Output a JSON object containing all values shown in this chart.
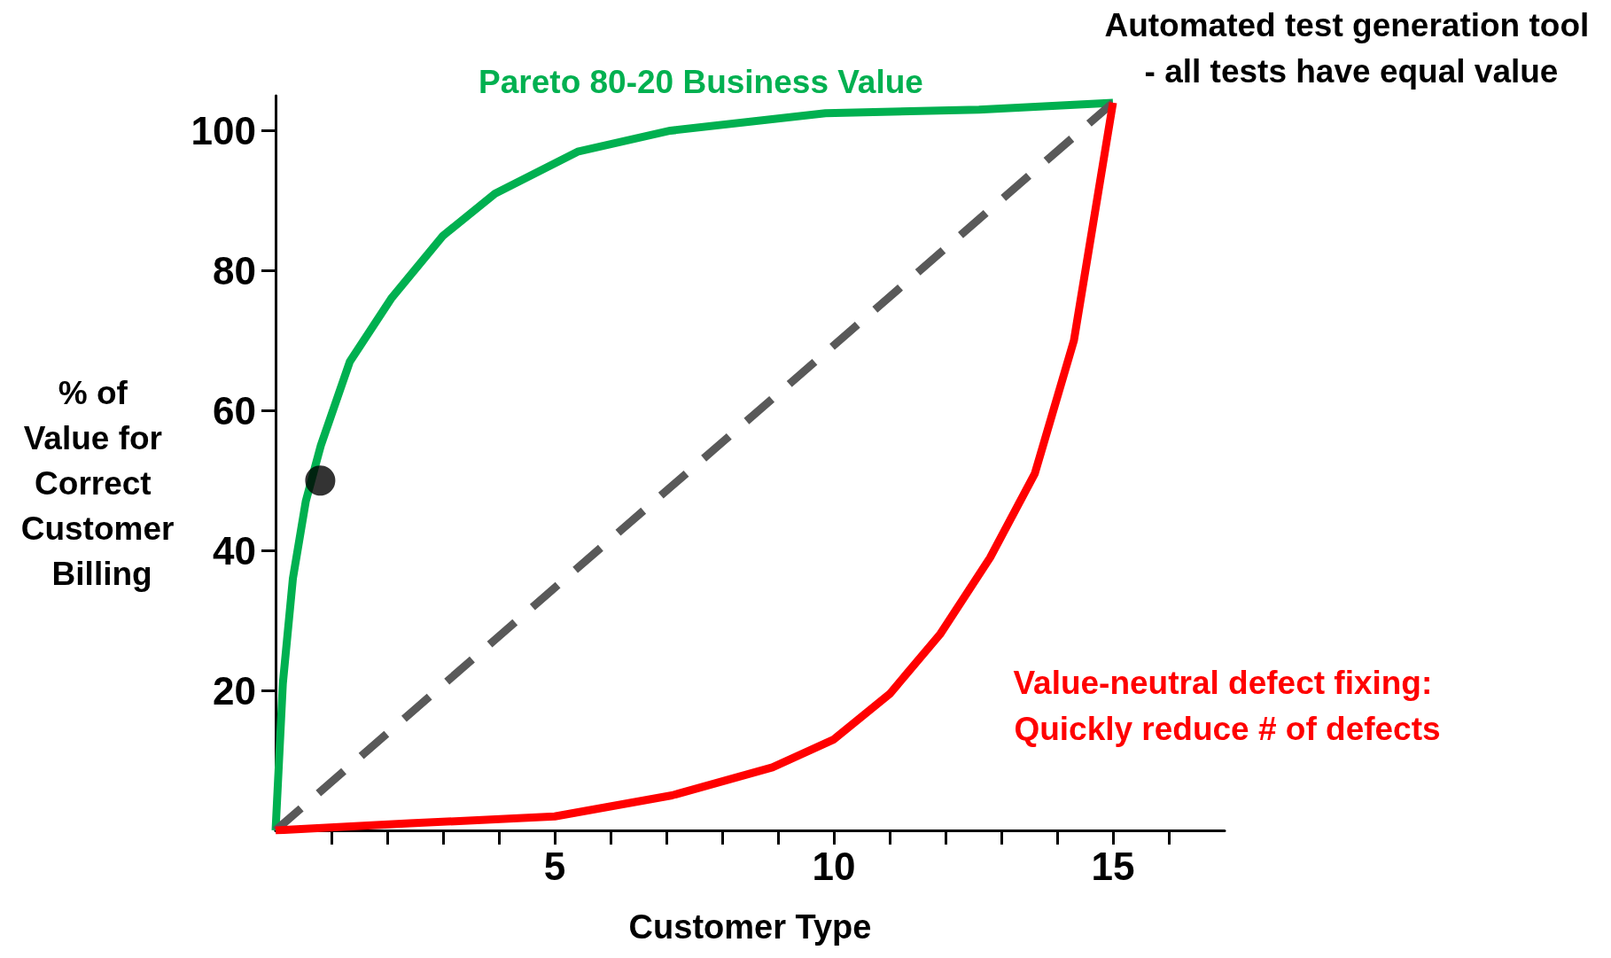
{
  "chart_data": {
    "type": "line",
    "xlabel": "Customer Type",
    "ylabel": "% of Value for Correct Customer Billing",
    "xlim": [
      0,
      17
    ],
    "ylim": [
      0,
      105
    ],
    "xticks": [
      {
        "value": 1,
        "label": null
      },
      {
        "value": 2,
        "label": null
      },
      {
        "value": 3,
        "label": null
      },
      {
        "value": 4,
        "label": null
      },
      5,
      {
        "value": 6,
        "label": null
      },
      {
        "value": 7,
        "label": null
      },
      {
        "value": 8,
        "label": null
      },
      {
        "value": 9,
        "label": null
      },
      10,
      {
        "value": 11,
        "label": null
      },
      {
        "value": 12,
        "label": null
      },
      {
        "value": 13,
        "label": null
      },
      {
        "value": 14,
        "label": null
      },
      15,
      {
        "value": 16,
        "label": null
      }
    ],
    "yticks": [
      20,
      40,
      60,
      80,
      100
    ],
    "grid": false,
    "legend": false,
    "marker": "none",
    "series": [
      {
        "name": "Pareto 80-20 Business Value",
        "color": "#00b050",
        "line_style": "solid",
        "x": [
          0,
          0.13,
          0.31,
          0.54,
          0.81,
          1.33,
          2.07,
          3.0,
          3.93,
          5.41,
          7.07,
          9.85,
          12.6,
          15
        ],
        "values": [
          0,
          21,
          36,
          47,
          55,
          67,
          76,
          85,
          91,
          97,
          100,
          102.5,
          103,
          104
        ]
      },
      {
        "name": "Automated test generation tool - all tests have equal value",
        "color": "#595959",
        "line_style": "dashed",
        "x": [
          0,
          15
        ],
        "values": [
          0,
          104
        ]
      },
      {
        "name": "Value-neutral defect fixing: Quickly reduce # of defects",
        "color": "#ff0000",
        "line_style": "solid",
        "x": [
          0,
          2.4,
          5,
          7.1,
          8.9,
          10,
          11,
          11.9,
          12.8,
          13.6,
          14.3,
          15
        ],
        "values": [
          0,
          1,
          2,
          5,
          9,
          13,
          19.5,
          28,
          39,
          51,
          70,
          104
        ]
      },
      {
        "type": "scatter",
        "color": "#000000",
        "marker": "circle",
        "x": [
          0.8
        ],
        "values": [
          50
        ]
      }
    ]
  }
}
